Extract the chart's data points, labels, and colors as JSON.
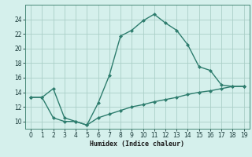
{
  "xlabel": "Humidex (Indice chaleur)",
  "x_upper": [
    0,
    1,
    2,
    3,
    4,
    5,
    6,
    7,
    8,
    9,
    10,
    11,
    12,
    13,
    14,
    15,
    16,
    17,
    18,
    19
  ],
  "y_upper": [
    13.3,
    13.3,
    14.5,
    10.5,
    10.0,
    9.5,
    12.5,
    16.3,
    21.7,
    22.5,
    23.8,
    24.7,
    23.5,
    22.5,
    20.5,
    17.5,
    17.0,
    15.0,
    14.8,
    14.8
  ],
  "x_lower": [
    0,
    1,
    2,
    3,
    4,
    5,
    6,
    7,
    8,
    9,
    10,
    11,
    12,
    13,
    14,
    15,
    16,
    17,
    18,
    19
  ],
  "y_lower": [
    13.3,
    13.3,
    10.5,
    10.0,
    10.0,
    9.5,
    10.5,
    11.0,
    11.5,
    12.0,
    12.3,
    12.7,
    13.0,
    13.3,
    13.7,
    14.0,
    14.2,
    14.5,
    14.8,
    14.8
  ],
  "line_color": "#2e7d6e",
  "bg_color": "#d5f0ec",
  "grid_color": "#aacfc8",
  "ylim": [
    9,
    26
  ],
  "xlim": [
    -0.5,
    19.5
  ],
  "yticks": [
    10,
    12,
    14,
    16,
    18,
    20,
    22,
    24
  ],
  "xticks": [
    0,
    1,
    2,
    3,
    4,
    5,
    6,
    7,
    8,
    9,
    10,
    11,
    12,
    13,
    14,
    15,
    16,
    17,
    18,
    19
  ]
}
